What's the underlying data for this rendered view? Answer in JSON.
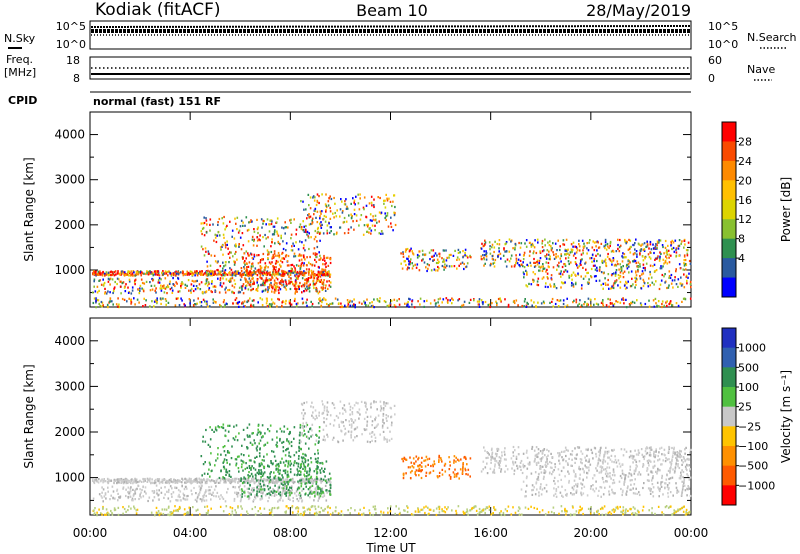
{
  "header": {
    "station": "Kodiak (fitACF)",
    "beam": "Beam 10",
    "date": "28/May/2019"
  },
  "top_panels": {
    "nsky_label": "N.Sky",
    "nsky_ticks": [
      "10^5",
      "10^0"
    ],
    "nsearch_label": "N.Search",
    "nsearch_ticks": [
      "10^5",
      "10^0"
    ],
    "freq_label_1": "Freq.",
    "freq_label_2": "[MHz]",
    "freq_ticks": [
      "18",
      "8"
    ],
    "nave_label": "Nave",
    "nave_ticks": [
      "60",
      "0"
    ],
    "cpid_label": "CPID",
    "cpid_value": "normal (fast) 151 RF"
  },
  "chart_data": [
    {
      "type": "heatmap",
      "title": "",
      "quantity": "Power",
      "xlabel": "",
      "ylabel": "Slant Range [km]",
      "ylim": [
        180,
        4500
      ],
      "yticks": [
        1000,
        2000,
        3000,
        4000
      ],
      "xticks": [
        "00:00",
        "04:00",
        "08:00",
        "12:00",
        "16:00",
        "20:00",
        "00:00"
      ],
      "colorbar": {
        "label": "Power [dB]",
        "ticks": [
          "28",
          "24",
          "20",
          "16",
          "12",
          "8",
          "4"
        ],
        "colors": [
          "#ff0000",
          "#f94a00",
          "#fe8a00",
          "#ffc000",
          "#dcd400",
          "#88c030",
          "#2f9050",
          "#2a5aa0",
          "#0000ff"
        ]
      }
    },
    {
      "type": "heatmap",
      "title": "",
      "quantity": "Velocity",
      "xlabel": "Time UT",
      "ylabel": "Slant Range [km]",
      "ylim": [
        180,
        4500
      ],
      "yticks": [
        1000,
        2000,
        3000,
        4000
      ],
      "xticks": [
        "00:00",
        "04:00",
        "08:00",
        "12:00",
        "16:00",
        "20:00",
        "00:00"
      ],
      "colorbar": {
        "label": "Velocity [m s⁻¹]",
        "ticks": [
          "1000",
          "500",
          "100",
          "25",
          "−25",
          "−100",
          "−500",
          "−1000"
        ],
        "colors": [
          "#2030c0",
          "#3060b0",
          "#2f8f50",
          "#50c040",
          "#c8c8c8",
          "#ffc400",
          "#ff9000",
          "#ff5a00",
          "#ff0000"
        ]
      }
    }
  ]
}
